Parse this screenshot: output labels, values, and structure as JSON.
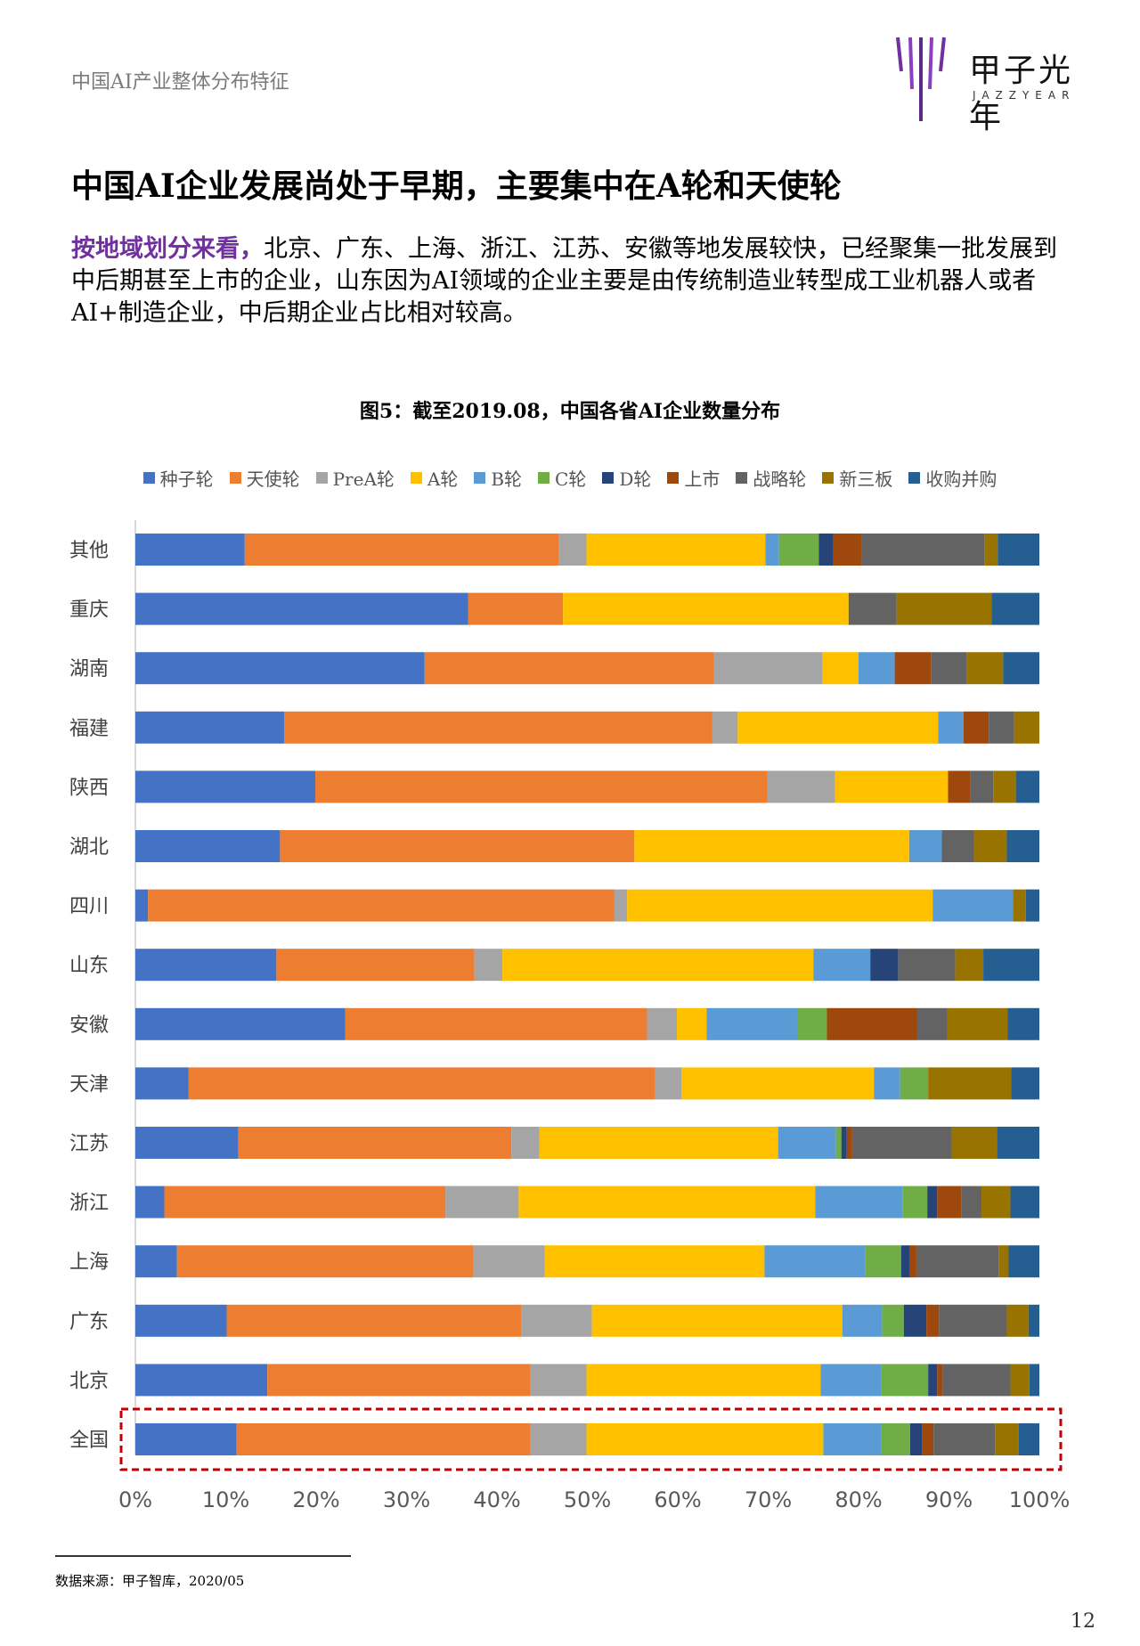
{
  "header": {
    "title": "中国AI产业整体分布特征"
  },
  "logo": {
    "name": "甲子光年",
    "sub": "JAZZYEAR",
    "icon": "jazzyear-logo-icon"
  },
  "heading": "中国AI企业发展尚处于早期，主要集中在A轮和天使轮",
  "paragraph": {
    "lead": "按地域划分来看，",
    "body": "北京、广东、上海、浙江、江苏、安徽等地发展较快，已经聚集一批发展到中后期甚至上市的企业，山东因为AI领域的企业主要是由传统制造业转型成工业机器人或者AI+制造企业，中后期企业占比相对较高。"
  },
  "figure": {
    "caption": "图5：截至2019.08，中国各省AI企业数量分布"
  },
  "footnote": "数据来源：甲子智库，2020/05",
  "page_number": "12",
  "colors": {
    "种子轮": "#4472c4",
    "天使轮": "#ed7d31",
    "PreA轮": "#a5a5a5",
    "A轮": "#ffc000",
    "B轮": "#5b9bd5",
    "C轮": "#70ad47",
    "D轮": "#264478",
    "上市": "#9e480e",
    "战略轮": "#636363",
    "新三板": "#997300",
    "收购并购": "#255e91",
    "highlight": "#c00000"
  },
  "chart_data": {
    "type": "bar",
    "orientation": "horizontal",
    "stacked": "percent",
    "title": "图5：截至2019.08，中国各省AI企业数量分布",
    "xlim": [
      0,
      100
    ],
    "xticks": [
      "0%",
      "10%",
      "20%",
      "30%",
      "40%",
      "50%",
      "60%",
      "70%",
      "80%",
      "90%",
      "100%"
    ],
    "legend_position": "top",
    "highlighted_category": "全国",
    "categories": [
      "其他",
      "重庆",
      "湖南",
      "福建",
      "陕西",
      "湖北",
      "四川",
      "山东",
      "安徽",
      "天津",
      "江苏",
      "浙江",
      "上海",
      "广东",
      "北京",
      "全国"
    ],
    "series": [
      {
        "name": "种子轮",
        "values": [
          12.1,
          36.8,
          32.0,
          16.5,
          19.9,
          16.0,
          1.4,
          15.6,
          23.2,
          5.9,
          11.4,
          3.2,
          4.6,
          10.1,
          14.6,
          11.2
        ]
      },
      {
        "name": "天使轮",
        "values": [
          34.7,
          10.5,
          32.0,
          47.4,
          50.0,
          39.2,
          51.6,
          21.9,
          33.4,
          51.6,
          30.2,
          31.1,
          32.8,
          32.6,
          29.1,
          32.5
        ]
      },
      {
        "name": "PreA轮",
        "values": [
          3.1,
          0,
          12.0,
          2.8,
          7.5,
          0,
          1.4,
          3.1,
          3.3,
          2.9,
          3.1,
          8.1,
          7.9,
          7.8,
          6.2,
          6.2
        ]
      },
      {
        "name": "A轮",
        "values": [
          19.8,
          31.6,
          4.0,
          22.2,
          12.5,
          30.4,
          33.8,
          34.4,
          3.3,
          21.3,
          26.4,
          32.8,
          24.3,
          27.7,
          25.9,
          26.2
        ]
      },
      {
        "name": "B轮",
        "values": [
          1.5,
          0,
          4.0,
          2.8,
          0,
          3.6,
          8.9,
          6.3,
          10.0,
          2.9,
          6.4,
          9.7,
          11.1,
          4.4,
          6.7,
          6.4
        ]
      },
      {
        "name": "C轮",
        "values": [
          4.4,
          0,
          0,
          0,
          0,
          0,
          0,
          0,
          3.3,
          3.1,
          0.6,
          2.7,
          4.0,
          2.4,
          5.2,
          3.2
        ]
      },
      {
        "name": "D轮",
        "values": [
          1.6,
          0,
          0,
          0,
          0,
          0,
          0,
          3.1,
          0,
          0,
          0.6,
          1.1,
          1.0,
          2.5,
          1.0,
          1.3
        ]
      },
      {
        "name": "上市",
        "values": [
          3.1,
          0,
          4.0,
          2.8,
          2.5,
          0,
          0,
          0,
          10.0,
          0,
          0.6,
          2.7,
          0.7,
          1.4,
          0.6,
          1.3
        ]
      },
      {
        "name": "战略轮",
        "values": [
          13.6,
          5.3,
          4.0,
          2.8,
          2.5,
          3.6,
          0,
          6.3,
          3.3,
          0,
          11.0,
          2.2,
          9.1,
          7.5,
          7.5,
          6.8
        ]
      },
      {
        "name": "新三板",
        "values": [
          1.5,
          10.5,
          4.0,
          2.8,
          2.5,
          3.6,
          1.4,
          3.1,
          6.7,
          9.2,
          5.0,
          3.2,
          1.1,
          2.4,
          2.1,
          2.6
        ]
      },
      {
        "name": "收购并购",
        "values": [
          4.6,
          5.3,
          4.0,
          0,
          2.6,
          3.6,
          1.5,
          6.2,
          3.5,
          3.1,
          4.7,
          3.2,
          3.4,
          1.2,
          1.1,
          2.3
        ]
      }
    ]
  }
}
